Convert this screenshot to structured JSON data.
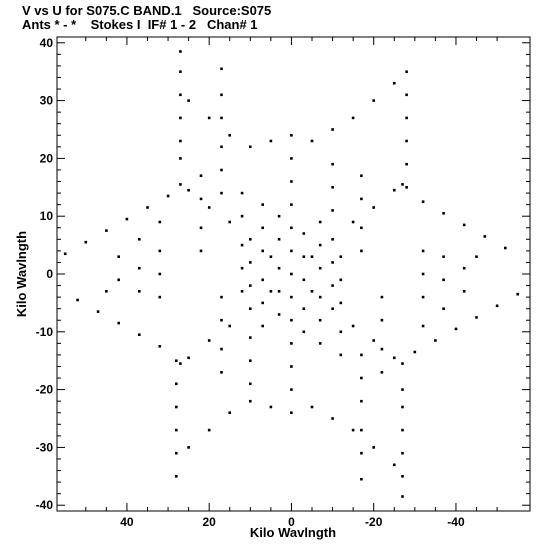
{
  "header": {
    "line1": "V vs U for S075.C BAND.1   Source:S075",
    "line2": "Ants * - *    Stokes I  IF# 1 - 2   Chan# 1"
  },
  "chart_data": {
    "type": "scatter",
    "title": "V vs U for S075.C BAND.1   Source:S075",
    "subtitle": "Ants * - *    Stokes I  IF# 1 - 2   Chan# 1",
    "xlabel": "Kilo Wavlngth",
    "ylabel": "Kilo Wavlngth",
    "xlim": [
      57,
      -58
    ],
    "ylim": [
      -41,
      41
    ],
    "x_reversed": true,
    "xticks": [
      40,
      20,
      0,
      -20,
      -40
    ],
    "yticks": [
      40,
      30,
      20,
      10,
      0,
      -10,
      -20,
      -30,
      -40
    ],
    "grid": false,
    "marker_color": "#000000",
    "series": [
      {
        "points": [
          [
            0,
            0
          ],
          [
            5,
            3
          ],
          [
            10,
            6
          ],
          [
            15,
            9
          ],
          [
            20,
            11.5
          ],
          [
            25,
            14.5
          ],
          [
            27,
            15.5
          ],
          [
            -5,
            -3
          ],
          [
            -10,
            -6
          ],
          [
            -15,
            -9
          ],
          [
            -20,
            -11.5
          ],
          [
            -25,
            -14.5
          ],
          [
            -27,
            -15.5
          ],
          [
            -5,
            3
          ],
          [
            -10,
            6
          ],
          [
            -15,
            9
          ],
          [
            -20,
            11.5
          ],
          [
            -25,
            14.5
          ],
          [
            -27,
            15.5
          ],
          [
            5,
            -3
          ],
          [
            10,
            -6
          ],
          [
            15,
            -9
          ],
          [
            20,
            -11.5
          ],
          [
            25,
            -14.5
          ],
          [
            27,
            -15.5
          ],
          [
            0,
            4
          ],
          [
            0,
            8
          ],
          [
            0,
            12
          ],
          [
            0,
            16
          ],
          [
            0,
            20
          ],
          [
            0,
            24
          ],
          [
            0,
            -4
          ],
          [
            0,
            -8
          ],
          [
            0,
            -12
          ],
          [
            0,
            -16
          ],
          [
            0,
            -20
          ],
          [
            0,
            -24
          ],
          [
            27,
            38.5
          ],
          [
            27,
            35
          ],
          [
            27,
            31
          ],
          [
            27,
            27
          ],
          [
            27,
            23
          ],
          [
            27,
            20
          ],
          [
            -28,
            35
          ],
          [
            -28,
            31
          ],
          [
            -28,
            27
          ],
          [
            -28,
            23
          ],
          [
            -28,
            19
          ],
          [
            -28,
            15
          ],
          [
            -27,
            -38.5
          ],
          [
            -27,
            -35
          ],
          [
            -27,
            -31
          ],
          [
            -27,
            -27
          ],
          [
            -27,
            -23
          ],
          [
            -27,
            -20
          ],
          [
            28,
            -35
          ],
          [
            28,
            -31
          ],
          [
            28,
            -27
          ],
          [
            28,
            -23
          ],
          [
            28,
            -19
          ],
          [
            28,
            -15
          ],
          [
            55,
            3.5
          ],
          [
            50,
            5.5
          ],
          [
            45,
            7.5
          ],
          [
            40,
            9.5
          ],
          [
            35,
            11.5
          ],
          [
            30,
            13.5
          ],
          [
            -55,
            -3.5
          ],
          [
            -50,
            -5.5
          ],
          [
            -45,
            -7.5
          ],
          [
            -40,
            -9.5
          ],
          [
            -35,
            -11.5
          ],
          [
            -30,
            -13.5
          ],
          [
            52,
            -4.5
          ],
          [
            47,
            -6.5
          ],
          [
            42,
            -8.5
          ],
          [
            37,
            -10.5
          ],
          [
            32,
            -12.5
          ],
          [
            -52,
            4.5
          ],
          [
            -47,
            6.5
          ],
          [
            -42,
            8.5
          ],
          [
            -37,
            10.5
          ],
          [
            -32,
            12.5
          ],
          [
            5,
            23
          ],
          [
            10,
            22
          ],
          [
            15,
            24
          ],
          [
            20,
            27
          ],
          [
            25,
            30
          ],
          [
            -5,
            23
          ],
          [
            -10,
            25
          ],
          [
            -15,
            27
          ],
          [
            -20,
            30
          ],
          [
            -25,
            33
          ],
          [
            5,
            -23
          ],
          [
            10,
            -22
          ],
          [
            15,
            -24
          ],
          [
            20,
            -27
          ],
          [
            25,
            -30
          ],
          [
            -5,
            -23
          ],
          [
            -10,
            -25
          ],
          [
            -15,
            -27
          ],
          [
            -20,
            -30
          ],
          [
            -25,
            -33
          ],
          [
            17,
            35.5
          ],
          [
            17,
            31
          ],
          [
            17,
            27
          ],
          [
            17,
            22
          ],
          [
            17,
            18
          ],
          [
            17,
            14
          ],
          [
            -17,
            -35.5
          ],
          [
            -17,
            -31
          ],
          [
            -17,
            -27
          ],
          [
            -17,
            -22
          ],
          [
            -17,
            -18
          ],
          [
            -17,
            -14
          ],
          [
            22,
            17
          ],
          [
            22,
            13
          ],
          [
            22,
            8
          ],
          [
            22,
            4
          ],
          [
            -22,
            -17
          ],
          [
            -22,
            -13
          ],
          [
            -22,
            -8
          ],
          [
            -22,
            -4
          ],
          [
            -17,
            17
          ],
          [
            -17,
            13
          ],
          [
            -17,
            8
          ],
          [
            -17,
            4
          ],
          [
            17,
            -17
          ],
          [
            17,
            -13
          ],
          [
            17,
            -8
          ],
          [
            17,
            -4
          ],
          [
            12,
            14
          ],
          [
            12,
            10
          ],
          [
            12,
            5
          ],
          [
            12,
            1
          ],
          [
            12,
            -3
          ],
          [
            -12,
            -14
          ],
          [
            -12,
            -10
          ],
          [
            -12,
            -5
          ],
          [
            -12,
            -1
          ],
          [
            -12,
            3
          ],
          [
            7,
            12
          ],
          [
            7,
            8
          ],
          [
            7,
            4
          ],
          [
            7,
            -1
          ],
          [
            7,
            -5
          ],
          [
            7,
            -9
          ],
          [
            -7,
            -12
          ],
          [
            -7,
            -8
          ],
          [
            -7,
            -4
          ],
          [
            -7,
            1
          ],
          [
            -7,
            5
          ],
          [
            -7,
            9
          ],
          [
            3,
            10
          ],
          [
            3,
            6
          ],
          [
            3,
            1
          ],
          [
            3,
            -3
          ],
          [
            3,
            -7
          ],
          [
            -3,
            -10
          ],
          [
            -3,
            -6
          ],
          [
            -3,
            -1
          ],
          [
            -3,
            3
          ],
          [
            -3,
            7
          ],
          [
            -10,
            19
          ],
          [
            -10,
            15
          ],
          [
            -10,
            11
          ],
          [
            -10,
            2
          ],
          [
            -10,
            -2
          ],
          [
            10,
            -19
          ],
          [
            10,
            -15
          ],
          [
            10,
            -11
          ],
          [
            10,
            2
          ],
          [
            10,
            -2
          ],
          [
            32,
            9
          ],
          [
            32,
            4
          ],
          [
            32,
            0
          ],
          [
            32,
            -4
          ],
          [
            -32,
            -9
          ],
          [
            -32,
            -4
          ],
          [
            -32,
            0
          ],
          [
            -32,
            4
          ],
          [
            37,
            6
          ],
          [
            37,
            1
          ],
          [
            37,
            -3
          ],
          [
            -37,
            -6
          ],
          [
            -37,
            -1
          ],
          [
            -37,
            3
          ],
          [
            42,
            3
          ],
          [
            42,
            -1
          ],
          [
            -42,
            -3
          ],
          [
            -42,
            1
          ],
          [
            45,
            -3
          ],
          [
            -45,
            3
          ]
        ]
      }
    ]
  }
}
